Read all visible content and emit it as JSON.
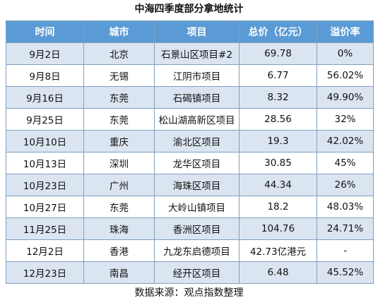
{
  "title": "中海四季度部分拿地统计",
  "colors": {
    "header_bg": "#5b9bd5",
    "alt_row_bg": "#dbe5f1",
    "border": "#7f9fbf"
  },
  "table": {
    "headers": [
      "时间",
      "城市",
      "项目",
      "总价（亿元）",
      "溢价率"
    ],
    "rows": [
      [
        "9月2日",
        "北京",
        "石景山区项目#2",
        "69.78",
        "0%"
      ],
      [
        "9月8日",
        "无锡",
        "江阴市项目",
        "6.77",
        "56.02%"
      ],
      [
        "9月16日",
        "东莞",
        "石碣镇项目",
        "8.32",
        "49.90%"
      ],
      [
        "9月25日",
        "东莞",
        "松山湖高新区项目",
        "28.56",
        "32%"
      ],
      [
        "10月10日",
        "重庆",
        "渝北区项目",
        "19.3",
        "42.02%"
      ],
      [
        "10月13日",
        "深圳",
        "龙华区项目",
        "30.85",
        "45%"
      ],
      [
        "10月23日",
        "广州",
        "海珠区项目",
        "44.34",
        "26%"
      ],
      [
        "10月27日",
        "东莞",
        "大岭山镇项目",
        "18.2",
        "48.03%"
      ],
      [
        "11月25日",
        "珠海",
        "香洲区项目",
        "104.76",
        "24.71%"
      ],
      [
        "12月2日",
        "香港",
        "九龙东启德项目",
        "42.73亿港元",
        "-"
      ],
      [
        "12月23日",
        "南昌",
        "经开区项目",
        "6.48",
        "45.52%"
      ]
    ]
  },
  "source": "数据来源：观点指数整理"
}
